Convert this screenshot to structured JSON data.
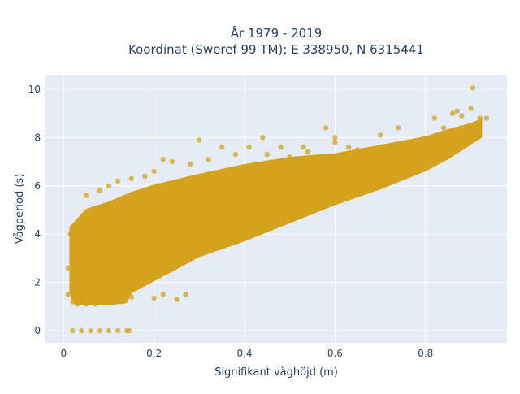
{
  "chart_data": {
    "type": "scatter",
    "title_lines": [
      "År 1979 - 2019",
      "Koordinat (Sweref 99 TM): E 338950, N 6315441"
    ],
    "xlabel": "Signifikant våghöjd (m)",
    "ylabel": "Vågperiod (s)",
    "xlim": [
      -0.04,
      0.98
    ],
    "ylim": [
      -0.5,
      10.6
    ],
    "x_ticks": [
      0,
      0.2,
      0.4,
      0.6,
      0.8
    ],
    "x_tick_labels": [
      "0",
      "0,2",
      "0,4",
      "0,6",
      "0,8"
    ],
    "y_ticks": [
      0,
      2,
      4,
      6,
      8,
      10
    ],
    "y_tick_labels": [
      "0",
      "2",
      "4",
      "6",
      "8",
      "10"
    ],
    "grid": true,
    "marker_color": "#d4a21d",
    "background_color": "#e5ecf6",
    "series": [
      {
        "points": [
          [
            0.02,
            0.0
          ],
          [
            0.04,
            0.0
          ],
          [
            0.06,
            0.0
          ],
          [
            0.08,
            0.0
          ],
          [
            0.1,
            0.0
          ],
          [
            0.12,
            0.0
          ],
          [
            0.14,
            0.0
          ],
          [
            0.145,
            0.0
          ],
          [
            0.01,
            2.6
          ],
          [
            0.01,
            1.5
          ],
          [
            0.015,
            4.0
          ],
          [
            0.02,
            1.2
          ],
          [
            0.03,
            1.1
          ],
          [
            0.05,
            5.6
          ],
          [
            0.08,
            5.8
          ],
          [
            0.1,
            6.0
          ],
          [
            0.12,
            6.2
          ],
          [
            0.15,
            6.3
          ],
          [
            0.18,
            6.4
          ],
          [
            0.2,
            6.6
          ],
          [
            0.22,
            7.1
          ],
          [
            0.24,
            7.0
          ],
          [
            0.28,
            6.9
          ],
          [
            0.3,
            7.9
          ],
          [
            0.32,
            7.1
          ],
          [
            0.35,
            7.6
          ],
          [
            0.38,
            7.3
          ],
          [
            0.41,
            7.6
          ],
          [
            0.45,
            7.3
          ],
          [
            0.48,
            7.6
          ],
          [
            0.5,
            7.2
          ],
          [
            0.53,
            7.6
          ],
          [
            0.54,
            7.4
          ],
          [
            0.57,
            7.2
          ],
          [
            0.58,
            8.4
          ],
          [
            0.6,
            7.8
          ],
          [
            0.63,
            7.6
          ],
          [
            0.65,
            7.5
          ],
          [
            0.7,
            8.1
          ],
          [
            0.74,
            8.4
          ],
          [
            0.8,
            7.8
          ],
          [
            0.82,
            8.8
          ],
          [
            0.84,
            8.4
          ],
          [
            0.86,
            9.0
          ],
          [
            0.87,
            9.1
          ],
          [
            0.88,
            8.9
          ],
          [
            0.9,
            9.2
          ],
          [
            0.905,
            10.05
          ],
          [
            0.92,
            8.8
          ],
          [
            0.935,
            8.8
          ],
          [
            0.6,
            8.0
          ],
          [
            0.44,
            8.0
          ],
          [
            0.15,
            1.4
          ],
          [
            0.2,
            1.35
          ],
          [
            0.22,
            1.5
          ],
          [
            0.25,
            1.3
          ],
          [
            0.27,
            1.5
          ],
          [
            0.05,
            1.1
          ],
          [
            0.07,
            1.1
          ],
          [
            0.1,
            1.2
          ],
          [
            0.13,
            1.2
          ]
        ]
      }
    ]
  }
}
